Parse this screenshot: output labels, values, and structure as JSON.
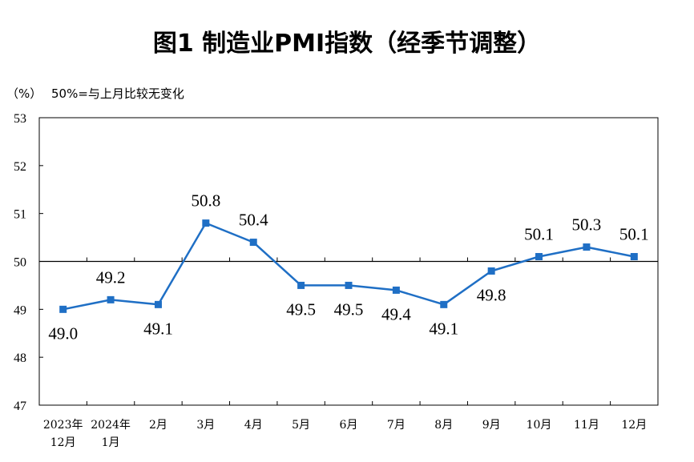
{
  "chart_data": {
    "type": "line",
    "title": "图1  制造业PMI指数（经季节调整）",
    "unit_label": "（%）",
    "note": "50%=与上月比较无变化",
    "categories": [
      [
        "2023年",
        "12月"
      ],
      [
        "2024年",
        "1月"
      ],
      [
        "2月"
      ],
      [
        "3月"
      ],
      [
        "4月"
      ],
      [
        "5月"
      ],
      [
        "6月"
      ],
      [
        "7月"
      ],
      [
        "8月"
      ],
      [
        "9月"
      ],
      [
        "10月"
      ],
      [
        "11月"
      ],
      [
        "12月"
      ]
    ],
    "series": [
      {
        "name": "制造业PMI指数",
        "values": [
          49.0,
          49.2,
          49.1,
          50.8,
          50.4,
          49.5,
          49.5,
          49.4,
          49.1,
          49.8,
          50.1,
          50.3,
          50.1
        ],
        "labels": [
          "49.0",
          "49.2",
          "49.1",
          "50.8",
          "50.4",
          "49.5",
          "49.5",
          "49.4",
          "49.1",
          "49.8",
          "50.1",
          "50.3",
          "50.1"
        ],
        "label_position": [
          "below",
          "above",
          "below",
          "above",
          "above",
          "below",
          "below",
          "below",
          "below",
          "below",
          "above",
          "above",
          "above"
        ],
        "color": "#1F6FC5"
      }
    ],
    "ylim": [
      47,
      53
    ],
    "yticks": [
      "47",
      "48",
      "49",
      "50",
      "51",
      "52",
      "53"
    ],
    "reference_line": 50,
    "grid": false
  }
}
